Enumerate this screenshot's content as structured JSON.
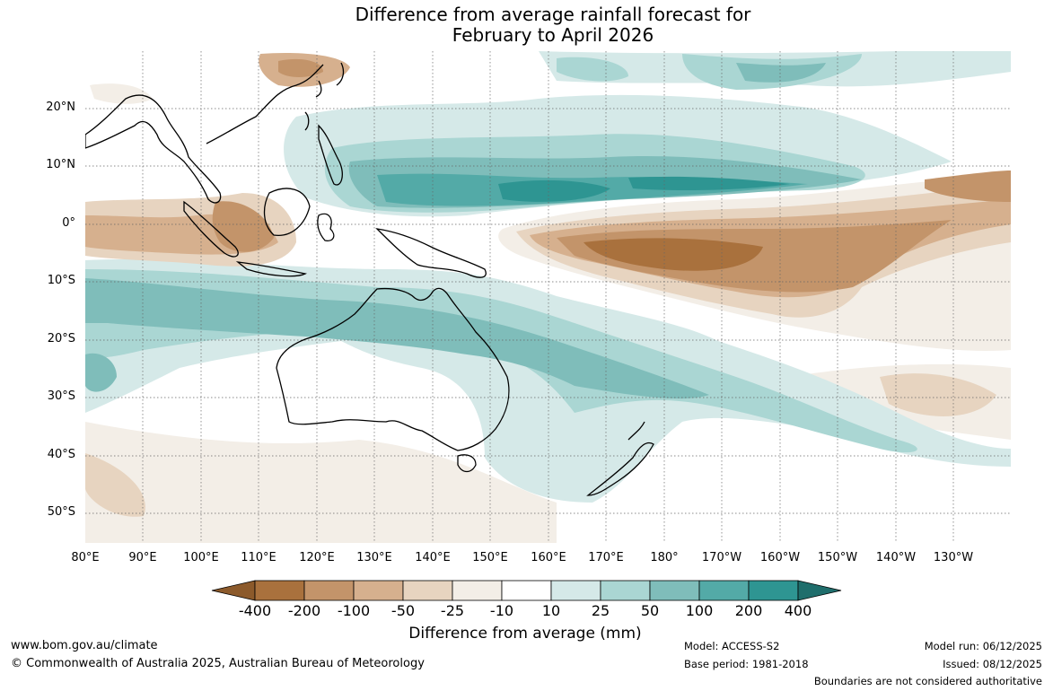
{
  "title_line1": "Difference from average rainfall forecast for",
  "title_line2": "February to April 2026",
  "lat_labels": [
    "20°N",
    "10°N",
    "0°",
    "10°S",
    "20°S",
    "30°S",
    "40°S",
    "50°S"
  ],
  "lon_labels": [
    "80°E",
    "90°E",
    "100°E",
    "110°E",
    "120°E",
    "130°E",
    "140°E",
    "150°E",
    "160°E",
    "170°E",
    "180°",
    "170°W",
    "160°W",
    "150°W",
    "140°W",
    "130°W"
  ],
  "colorbar": {
    "labels": [
      "-400",
      "-200",
      "-100",
      "-50",
      "-25",
      "-10",
      "10",
      "25",
      "50",
      "100",
      "200",
      "400"
    ],
    "colors": [
      "#8c5a2b",
      "#a9713d",
      "#c3946a",
      "#d6b08e",
      "#e7d4c0",
      "#f3eee7",
      "#ffffff",
      "#d5e9e8",
      "#aad6d3",
      "#7fbdba",
      "#53aaa7",
      "#2e9592",
      "#1f6e6c"
    ],
    "title": "Difference from average (mm)"
  },
  "footer": {
    "website": "www.bom.gov.au/climate",
    "copyright": "© Commonwealth of Australia 2025, Australian Bureau of Meteorology",
    "model": "Model: ACCESS-S2",
    "base_period": "Base period: 1981-2018",
    "model_run": "Model run: 06/12/2025",
    "issued": "Issued: 08/12/2025",
    "disclaimer": "Boundaries are not considered authoritative"
  }
}
